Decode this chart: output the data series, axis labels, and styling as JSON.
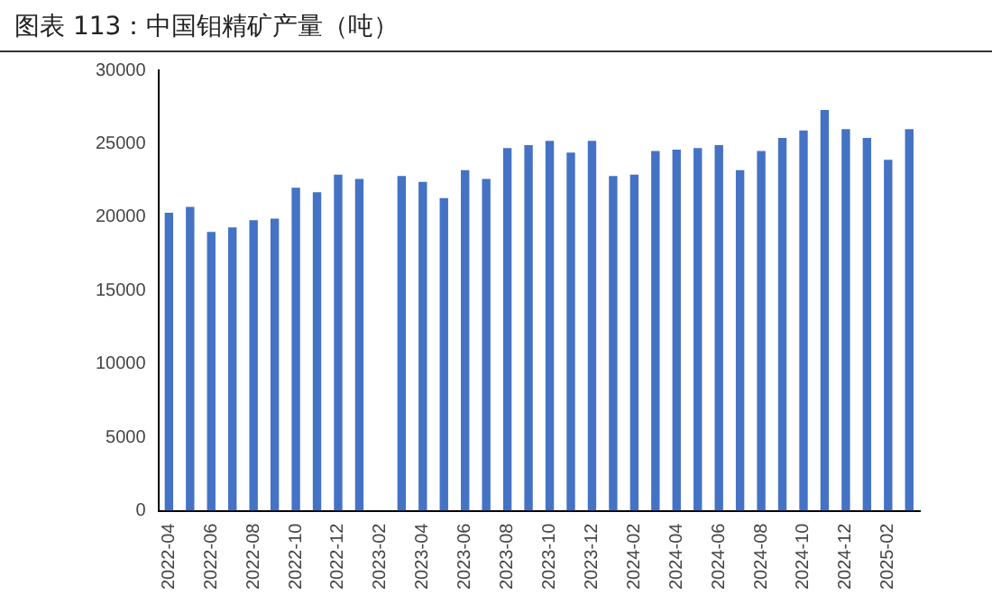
{
  "chart_data": {
    "type": "bar",
    "title": "图表 113：中国钼精矿产量（吨）",
    "categories": [
      "2022-04",
      null,
      "2022-06",
      null,
      "2022-08",
      null,
      "2022-10",
      null,
      "2022-12",
      null,
      "2023-02",
      null,
      "2023-04",
      null,
      "2023-06",
      null,
      "2023-08",
      null,
      "2023-10",
      null,
      "2023-12",
      null,
      "2024-02",
      null,
      "2024-04",
      null,
      "2024-06",
      null,
      "2024-08",
      null,
      "2024-10",
      null,
      "2024-12",
      null,
      "2025-02",
      null
    ],
    "values": [
      20300,
      20700,
      19000,
      19300,
      19800,
      19900,
      22000,
      21700,
      22900,
      22600,
      null,
      22800,
      22400,
      21300,
      23200,
      22600,
      24700,
      24900,
      25200,
      24400,
      25200,
      22800,
      22900,
      24500,
      24600,
      24700,
      24900,
      23200,
      24500,
      25400,
      25900,
      27300,
      26000,
      25400,
      23900,
      26000
    ],
    "color": "#4472c4",
    "ylim": [
      0,
      30000
    ],
    "yticks": [
      0,
      5000,
      10000,
      15000,
      20000,
      25000,
      30000
    ],
    "grid": false,
    "legend": false
  }
}
